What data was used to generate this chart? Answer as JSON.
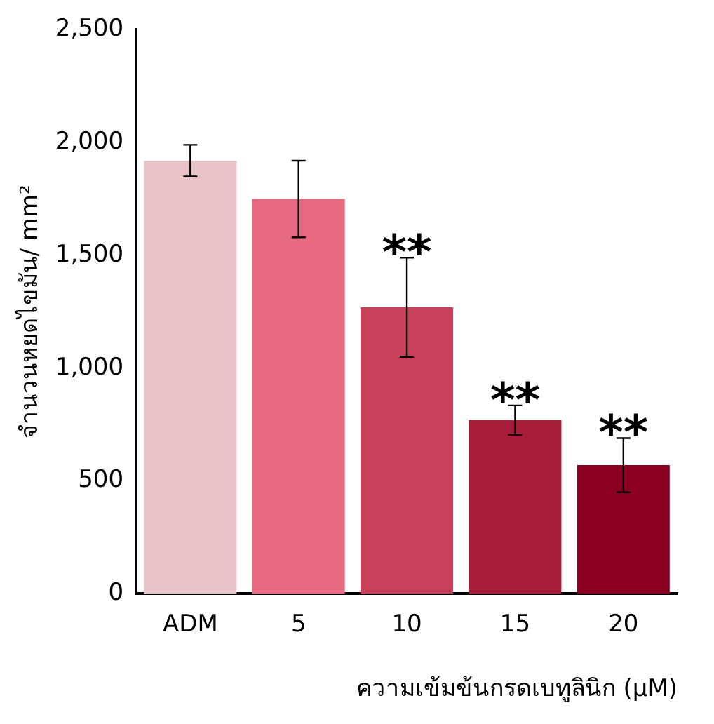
{
  "chart_data": {
    "type": "bar",
    "xlabel": "ความเข้มข้นกรดเบทูลินิก (μM)",
    "ylabel": "จำนวนหยดไขมัน/ mm²",
    "categories": [
      "ADM",
      "5",
      "10",
      "15",
      "20"
    ],
    "values": [
      1920,
      1750,
      1270,
      770,
      570
    ],
    "colors": [
      "#e8c4c9",
      "#e86a80",
      "#c9405a",
      "#a81e3a",
      "#8b0020"
    ],
    "errors": [
      70,
      170,
      220,
      65,
      120
    ],
    "ylim": [
      0,
      2500
    ],
    "yticks": [
      {
        "value": 0,
        "label": "0"
      },
      {
        "value": 500,
        "label": "500"
      },
      {
        "value": 1000,
        "label": "1,000"
      },
      {
        "value": 1500,
        "label": "1,500"
      },
      {
        "value": 2000,
        "label": "2,000"
      },
      {
        "value": 2500,
        "label": "2,500"
      }
    ],
    "value_labels": [
      null,
      null,
      "**",
      "**",
      "**"
    ],
    "grid": false,
    "legend": false
  }
}
